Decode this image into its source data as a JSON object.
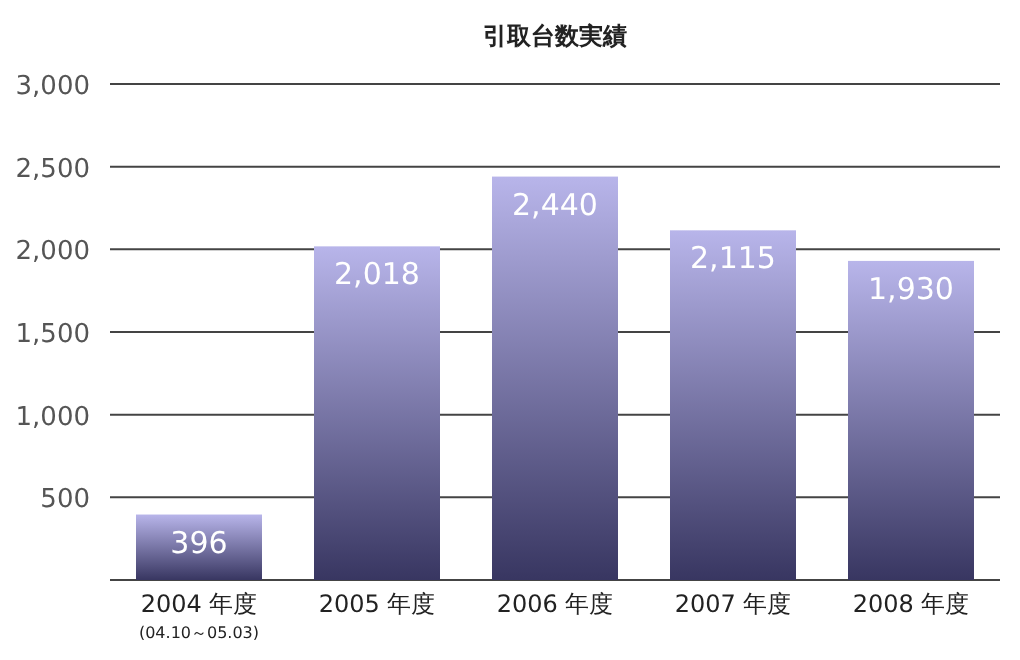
{
  "chart_data": {
    "type": "bar",
    "title": "引取台数実績",
    "categories": [
      "2004 年度",
      "2005 年度",
      "2006 年度",
      "2007 年度",
      "2008 年度"
    ],
    "values": [
      396,
      2018,
      2440,
      2115,
      1930
    ],
    "color": "#7d79d8",
    "ylim": [
      0,
      3000
    ],
    "yticks": [
      {
        "value": 0,
        "label": null
      },
      500,
      {
        "value": 1000,
        "label": "1,000"
      },
      {
        "value": 1500,
        "label": "1,500"
      },
      {
        "value": 2000,
        "label": "2,000"
      },
      {
        "value": 2500,
        "label": "2,500"
      },
      {
        "value": 3000,
        "label": "3,000"
      }
    ],
    "grid": "y",
    "data_labels": true,
    "value_labels": [
      "396",
      "2,018",
      "2,440",
      "2,115",
      "1,930"
    ],
    "annotations": [
      "(04.10～05.03)"
    ]
  }
}
